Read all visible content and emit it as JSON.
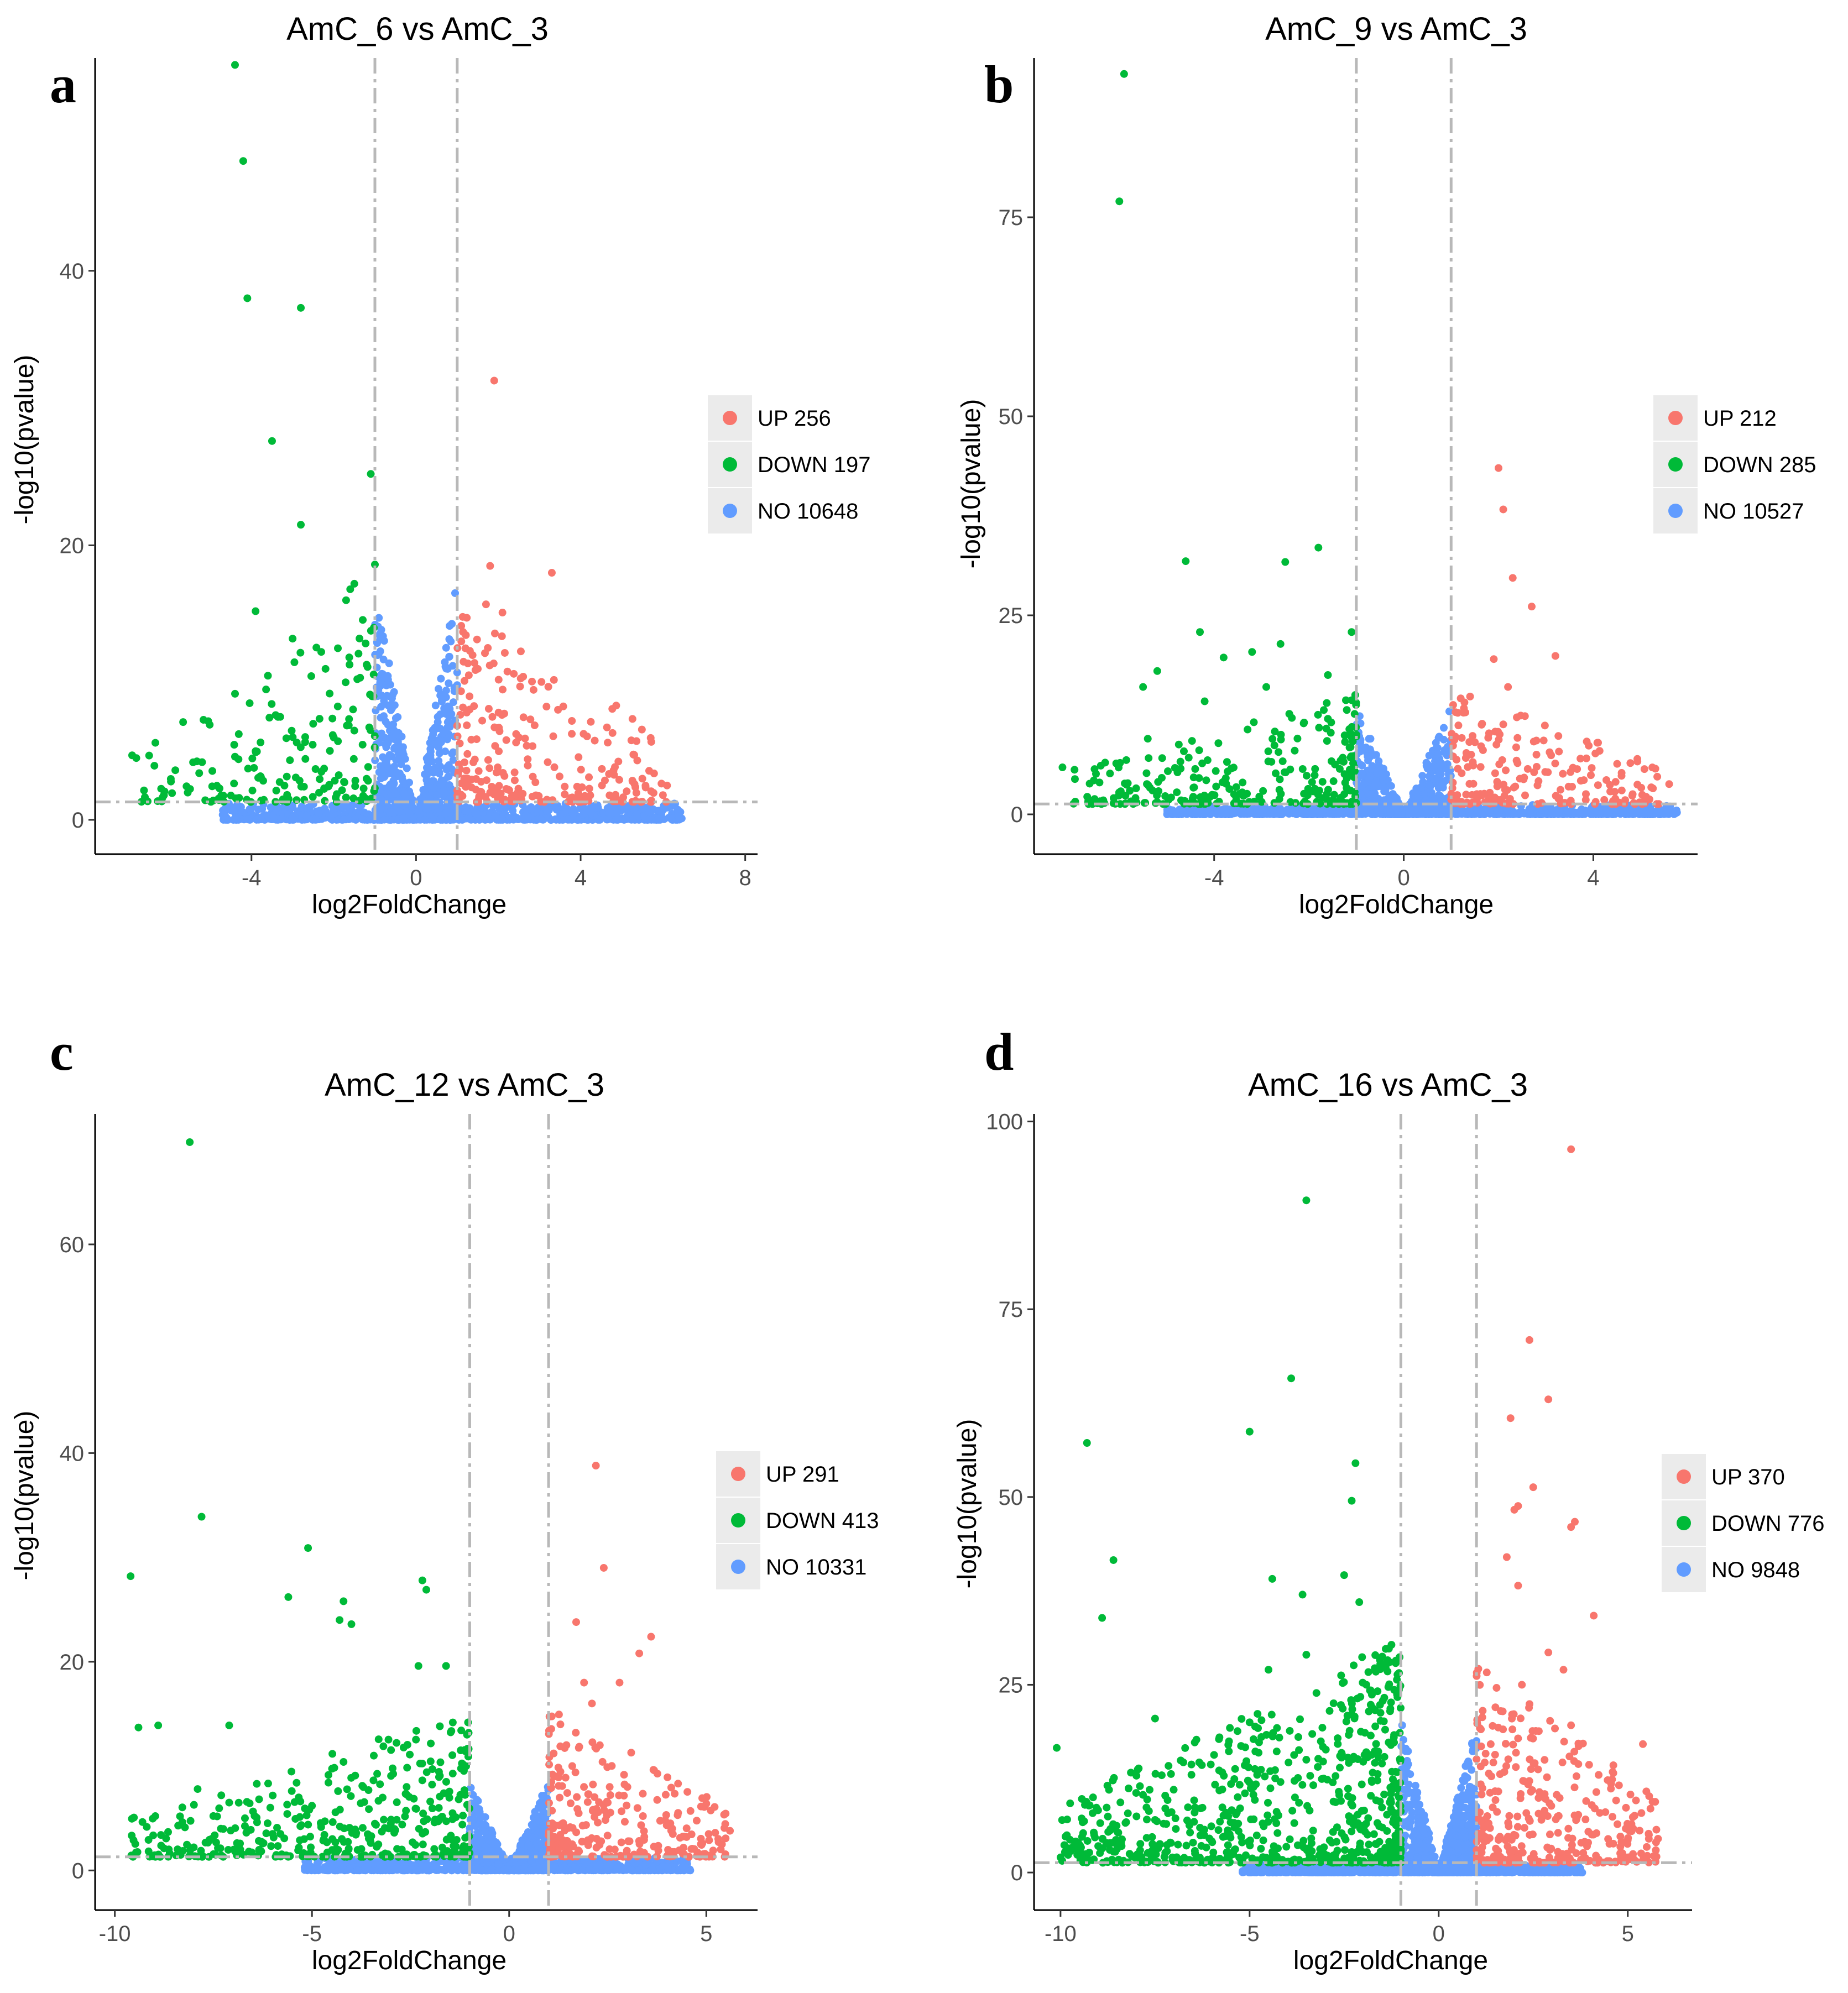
{
  "chart_data": [
    {
      "type": "scatter",
      "panel": "a",
      "title": "AmC_6 vs AmC_3",
      "xlabel": "log2FoldChange",
      "ylabel": "-log10(pvalue)",
      "xlim": [
        -7.8,
        8.3
      ],
      "ylim": [
        -2.5,
        55.5
      ],
      "xticks": [
        -4,
        0,
        4,
        8
      ],
      "xtick_labels": [
        "-4",
        "0",
        "4",
        "8"
      ],
      "yticks": [
        0,
        20,
        40
      ],
      "ytick_labels": [
        "0",
        "20",
        "40"
      ],
      "fc_threshold": 1,
      "p_threshold": 1.3,
      "legend": [
        {
          "label": "UP 256",
          "color": "#F8766D"
        },
        {
          "label": "DOWN 197",
          "color": "#00BA38"
        },
        {
          "label": "NO 10648",
          "color": "#619CFF"
        }
      ],
      "series": [
        {
          "name": "UP",
          "color": "#F8766D",
          "count": 256,
          "xmax": 6.3,
          "points": [
            [
              1.9,
              32
            ],
            [
              1.8,
              18.5
            ],
            [
              1.7,
              15.7
            ],
            [
              2.1,
              15.1
            ],
            [
              3.3,
              18
            ],
            [
              1.1,
              13
            ],
            [
              1.2,
              12.5
            ],
            [
              1.5,
              11
            ],
            [
              1.3,
              9
            ],
            [
              2.5,
              6
            ],
            [
              3.2,
              4.2
            ],
            [
              4.8,
              3.6
            ],
            [
              5.5,
              3
            ],
            [
              6.1,
              2.5
            ],
            [
              6.0,
              1.8
            ]
          ]
        },
        {
          "name": "DOWN",
          "color": "#00BA38",
          "count": 197,
          "xmin": -7.0,
          "points": [
            [
              -4.4,
              55
            ],
            [
              -4.2,
              48
            ],
            [
              -4.1,
              38
            ],
            [
              -2.8,
              37.3
            ],
            [
              -3.5,
              27.6
            ],
            [
              -1.1,
              25.2
            ],
            [
              -2.8,
              21.5
            ],
            [
              -1.0,
              18.6
            ],
            [
              -1.5,
              17.2
            ],
            [
              -1.6,
              16.8
            ],
            [
              -1.7,
              16
            ],
            [
              -3.9,
              15.2
            ],
            [
              -3.0,
              13.2
            ],
            [
              -1.9,
              12.5
            ],
            [
              -1.2,
              11.3
            ],
            [
              -2.2,
              11
            ],
            [
              -3.6,
              10.5
            ],
            [
              -2.1,
              9.2
            ],
            [
              -3.3,
              7.5
            ],
            [
              -2.5,
              7.0
            ],
            [
              -1.5,
              6.5
            ],
            [
              -2.0,
              6.0
            ],
            [
              -3.9,
              5.0
            ],
            [
              -6.9,
              4.7
            ],
            [
              -4.4,
              4.6
            ],
            [
              -5.2,
              4.2
            ],
            [
              -2.3,
              3.5
            ],
            [
              -4.3,
              1.6
            ],
            [
              -4.8,
              1.5
            ],
            [
              -1.2,
              1.5
            ]
          ]
        },
        {
          "name": "NO",
          "color": "#619CFF",
          "count": 10648,
          "xmin": -4.7,
          "xmax": 6.5,
          "max_y": 17.5
        }
      ]
    },
    {
      "type": "scatter",
      "panel": "b",
      "title": "AmC_9 vs AmC_3",
      "xlabel": "log2FoldChange",
      "ylabel": "-log10(pvalue)",
      "xlim": [
        -7.8,
        6.2
      ],
      "ylim": [
        -5,
        95
      ],
      "xticks": [
        -4,
        0,
        4
      ],
      "xtick_labels": [
        "-4",
        "0",
        "4"
      ],
      "yticks": [
        0,
        25,
        50,
        75
      ],
      "ytick_labels": [
        "0",
        "25",
        "50",
        "75"
      ],
      "fc_threshold": 1,
      "p_threshold": 1.3,
      "legend": [
        {
          "label": "UP 212",
          "color": "#F8766D"
        },
        {
          "label": "DOWN 285",
          "color": "#00BA38"
        },
        {
          "label": "NO 10527",
          "color": "#619CFF"
        }
      ],
      "series": [
        {
          "name": "UP",
          "color": "#F8766D",
          "count": 212,
          "xmax": 5.6,
          "points": [
            [
              2.0,
              43.5
            ],
            [
              2.1,
              38.3
            ],
            [
              2.3,
              29.7
            ],
            [
              2.7,
              26.1
            ],
            [
              3.2,
              19.9
            ],
            [
              1.9,
              19.5
            ],
            [
              2.2,
              16
            ],
            [
              1.4,
              14.8
            ],
            [
              1.3,
              12.8
            ],
            [
              2.1,
              11.3
            ],
            [
              2.4,
              9.6
            ],
            [
              4.1,
              9.0
            ],
            [
              2.8,
              7.5
            ],
            [
              3.8,
              4.3
            ],
            [
              4.6,
              3
            ],
            [
              5.6,
              3.8
            ]
          ]
        },
        {
          "name": "DOWN",
          "color": "#00BA38",
          "count": 285,
          "xmin": -7.2,
          "points": [
            [
              -5.9,
              93
            ],
            [
              -6.0,
              77
            ],
            [
              -1.8,
              33.5
            ],
            [
              -4.6,
              31.8
            ],
            [
              -2.5,
              31.7
            ],
            [
              -4.3,
              22.9
            ],
            [
              -1.1,
              22.9
            ],
            [
              -2.6,
              21.4
            ],
            [
              -3.2,
              20.4
            ],
            [
              -3.8,
              19.7
            ],
            [
              -5.2,
              18
            ],
            [
              -1.6,
              17.5
            ],
            [
              -2.9,
              16
            ],
            [
              -5.5,
              16
            ],
            [
              -4.2,
              14.2
            ],
            [
              -1.6,
              12
            ],
            [
              -1.0,
              10
            ],
            [
              -5.4,
              9.5
            ],
            [
              -2.3,
              8
            ],
            [
              -4.4,
              5.7
            ],
            [
              -3.4,
              4
            ],
            [
              -5.3,
              3
            ],
            [
              -6.3,
              6.5
            ],
            [
              -7.2,
              5.9
            ]
          ]
        },
        {
          "name": "NO",
          "color": "#619CFF",
          "count": 10527,
          "xmin": -5.0,
          "xmax": 5.8,
          "max_y": 13.8
        }
      ]
    },
    {
      "type": "scatter",
      "panel": "c",
      "title": "AmC_12 vs AmC_3",
      "xlabel": "log2FoldChange",
      "ylabel": "-log10(pvalue)",
      "xlim": [
        -10.5,
        6.3
      ],
      "ylim": [
        -3.8,
        72.5
      ],
      "xticks": [
        -10,
        -5,
        0,
        5
      ],
      "xtick_labels": [
        "-10",
        "-5",
        "0",
        "5"
      ],
      "yticks": [
        0,
        20,
        40,
        60
      ],
      "ytick_labels": [
        "0",
        "20",
        "40",
        "60"
      ],
      "fc_threshold": 1,
      "p_threshold": 1.3,
      "legend": [
        {
          "label": "UP 291",
          "color": "#F8766D"
        },
        {
          "label": "DOWN 413",
          "color": "#00BA38"
        },
        {
          "label": "NO 10331",
          "color": "#619CFF"
        }
      ],
      "series": [
        {
          "name": "UP",
          "color": "#F8766D",
          "count": 291,
          "xmax": 5.8,
          "points": [
            [
              2.2,
              38.8
            ],
            [
              2.4,
              29
            ],
            [
              1.7,
              23.8
            ],
            [
              3.6,
              22.4
            ],
            [
              3.3,
              20.8
            ],
            [
              2.8,
              18
            ],
            [
              1.9,
              18
            ],
            [
              2.1,
              16
            ],
            [
              1.3,
              14
            ],
            [
              2.3,
              12
            ],
            [
              1.6,
              10
            ],
            [
              3.0,
              8
            ],
            [
              2.5,
              6.5
            ],
            [
              5.0,
              6.4
            ],
            [
              4.5,
              3.2
            ],
            [
              5.6,
              3.8
            ],
            [
              4.9,
              2.6
            ]
          ]
        },
        {
          "name": "DOWN",
          "color": "#00BA38",
          "count": 413,
          "xmin": -9.8,
          "points": [
            [
              -8.1,
              69.8
            ],
            [
              -7.8,
              33.9
            ],
            [
              -5.1,
              30.9
            ],
            [
              -9.6,
              28.2
            ],
            [
              -2.2,
              27.8
            ],
            [
              -2.1,
              26.9
            ],
            [
              -5.6,
              26.2
            ],
            [
              -4.2,
              25.8
            ],
            [
              -4.3,
              24
            ],
            [
              -4.0,
              23.6
            ],
            [
              -2.3,
              19.6
            ],
            [
              -1.6,
              19.6
            ],
            [
              -9.4,
              13.7
            ],
            [
              -8.9,
              13.9
            ],
            [
              -7.1,
              13.9
            ],
            [
              -4.2,
              10.4
            ],
            [
              -2.6,
              8
            ],
            [
              -7.9,
              7.8
            ],
            [
              -7.3,
              7.2
            ],
            [
              -6.4,
              8.3
            ],
            [
              -7.1,
              6.5
            ],
            [
              -6.7,
              5
            ],
            [
              -5.8,
              3.5
            ],
            [
              -6.0,
              3.5
            ],
            [
              -5.0,
              6.2
            ],
            [
              -4.7,
              3
            ],
            [
              -3.0,
              4.5
            ],
            [
              -5.2,
              3
            ]
          ]
        },
        {
          "name": "NO",
          "color": "#619CFF",
          "count": 10331,
          "xmin": -5.2,
          "xmax": 4.6,
          "max_y": 8.8
        }
      ]
    },
    {
      "type": "scatter",
      "panel": "d",
      "title": "AmC_16 vs AmC_3",
      "xlabel": "log2FoldChange",
      "ylabel": "-log10(pvalue)",
      "xlim": [
        -10.7,
        6.7
      ],
      "ylim": [
        -5,
        101
      ],
      "xticks": [
        -10,
        -5,
        0,
        5
      ],
      "xtick_labels": [
        "-10",
        "-5",
        "0",
        "5"
      ],
      "yticks": [
        0,
        25,
        50,
        75,
        100
      ],
      "ytick_labels": [
        "0",
        "25",
        "50",
        "75",
        "100"
      ],
      "fc_threshold": 1,
      "p_threshold": 1.3,
      "legend": [
        {
          "label": "UP 370",
          "color": "#F8766D"
        },
        {
          "label": "DOWN 776",
          "color": "#00BA38"
        },
        {
          "label": "NO 9848",
          "color": "#619CFF"
        }
      ],
      "series": [
        {
          "name": "UP",
          "color": "#F8766D",
          "count": 370,
          "xmax": 6.0,
          "points": [
            [
              3.5,
              96.3
            ],
            [
              2.4,
              70.9
            ],
            [
              2.9,
              63
            ],
            [
              1.9,
              60.5
            ],
            [
              2.5,
              51.3
            ],
            [
              2.0,
              48.3
            ],
            [
              2.1,
              48.8
            ],
            [
              3.6,
              46.7
            ],
            [
              3.5,
              46
            ],
            [
              1.8,
              42
            ],
            [
              4.1,
              34.2
            ],
            [
              2.1,
              38.2
            ],
            [
              2.9,
              29.3
            ],
            [
              3.3,
              27
            ],
            [
              2.2,
              25
            ],
            [
              1.5,
              22
            ],
            [
              3.5,
              19.6
            ],
            [
              5.4,
              17.1
            ],
            [
              2.8,
              15
            ],
            [
              4.6,
              13.4
            ],
            [
              5.6,
              8.5
            ],
            [
              5.1,
              5.5
            ],
            [
              5.8,
              4.5
            ]
          ]
        },
        {
          "name": "DOWN",
          "color": "#00BA38",
          "count": 776,
          "xmin": -10.2,
          "points": [
            [
              -3.5,
              89.5
            ],
            [
              -3.9,
              65.8
            ],
            [
              -5.0,
              58.7
            ],
            [
              -9.3,
              57.2
            ],
            [
              -2.2,
              54.5
            ],
            [
              -2.3,
              49.5
            ],
            [
              -8.6,
              41.6
            ],
            [
              -2.5,
              39.6
            ],
            [
              -4.4,
              39.1
            ],
            [
              -3.6,
              37
            ],
            [
              -2.1,
              36
            ],
            [
              -8.9,
              33.9
            ],
            [
              -3.5,
              29
            ],
            [
              -1.3,
              28
            ],
            [
              -4.5,
              27
            ],
            [
              -7.5,
              20.5
            ],
            [
              -10.1,
              16.6
            ],
            [
              -8.2,
              11.2
            ],
            [
              -8.0,
              10.6
            ],
            [
              -7.9,
              11.5
            ],
            [
              -7.5,
              7
            ],
            [
              -7.1,
              4
            ],
            [
              -6.2,
              5
            ],
            [
              -5.2,
              4
            ],
            [
              -5.4,
              3
            ],
            [
              -5.4,
              6
            ],
            [
              -5.0,
              20
            ],
            [
              -4.8,
              13
            ],
            [
              -2.8,
              12
            ],
            [
              -3.8,
              10
            ]
          ]
        },
        {
          "name": "NO",
          "color": "#619CFF",
          "count": 9848,
          "xmin": -5.2,
          "xmax": 3.8,
          "max_y": 20.5
        }
      ]
    }
  ],
  "panel_labels": [
    "a",
    "b",
    "c",
    "d"
  ]
}
